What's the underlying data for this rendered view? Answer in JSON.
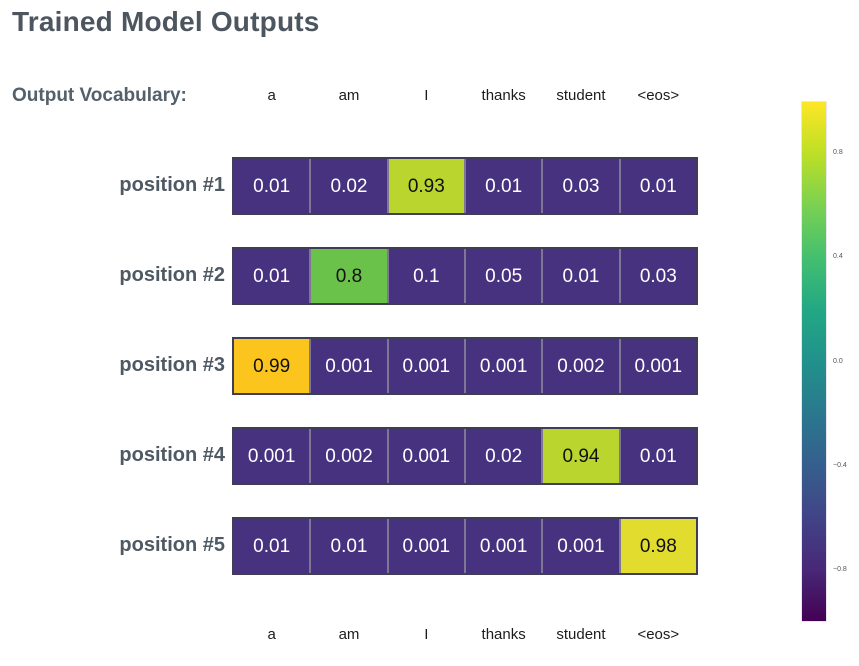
{
  "title": "Trained Model Outputs",
  "vocab_label": "Output Vocabulary:",
  "colors": {
    "cell_default": "#46327e",
    "cell_text_light": "#ffffff",
    "cell_text_dark": "#111111",
    "row_border": "#3f3e56",
    "cell_divider": "#7d7795",
    "title_text": "#4d565f",
    "label_text": "#54606a",
    "colorbar_top": "#fde725",
    "colorbar_bottom": "#440154"
  },
  "chart_data": {
    "type": "heatmap",
    "title": "Trained Model Outputs",
    "columns": [
      "a",
      "am",
      "I",
      "thanks",
      "student",
      "<eos>"
    ],
    "row_labels": [
      "position #1",
      "position #2",
      "position #3",
      "position #4",
      "position #5"
    ],
    "values": [
      [
        0.01,
        0.02,
        0.93,
        0.01,
        0.03,
        0.01
      ],
      [
        0.01,
        0.8,
        0.1,
        0.05,
        0.01,
        0.03
      ],
      [
        0.99,
        0.001,
        0.001,
        0.001,
        0.002,
        0.001
      ],
      [
        0.001,
        0.002,
        0.001,
        0.02,
        0.94,
        0.01
      ],
      [
        0.01,
        0.01,
        0.001,
        0.001,
        0.001,
        0.98
      ]
    ],
    "rows": [
      {
        "label": "position #1",
        "display": [
          "0.01",
          "0.02",
          "0.93",
          "0.01",
          "0.03",
          "0.01"
        ],
        "highlight_index": 2,
        "highlight_color": "#b9d52e"
      },
      {
        "label": "position #2",
        "display": [
          "0.01",
          "0.8",
          "0.1",
          "0.05",
          "0.01",
          "0.03"
        ],
        "highlight_index": 1,
        "highlight_color": "#6bc24b"
      },
      {
        "label": "position #3",
        "display": [
          "0.99",
          "0.001",
          "0.001",
          "0.001",
          "0.002",
          "0.001"
        ],
        "highlight_index": 0,
        "highlight_color": "#fcc51e"
      },
      {
        "label": "position #4",
        "display": [
          "0.001",
          "0.002",
          "0.001",
          "0.02",
          "0.94",
          "0.01"
        ],
        "highlight_index": 4,
        "highlight_color": "#b9d52e"
      },
      {
        "label": "position #5",
        "display": [
          "0.01",
          "0.01",
          "0.001",
          "0.001",
          "0.001",
          "0.98"
        ],
        "highlight_index": 5,
        "highlight_color": "#e2dc2f"
      }
    ],
    "colormap": "viridis",
    "colorbar": {
      "range": [
        -1,
        1
      ],
      "ticks": [
        {
          "label": "0.8",
          "value": 0.8
        },
        {
          "label": "0.4",
          "value": 0.4
        },
        {
          "label": "0.0",
          "value": 0.0
        },
        {
          "label": "−0.4",
          "value": -0.4
        },
        {
          "label": "−0.8",
          "value": -0.8
        }
      ]
    },
    "legend_position": "right",
    "grid": false
  }
}
